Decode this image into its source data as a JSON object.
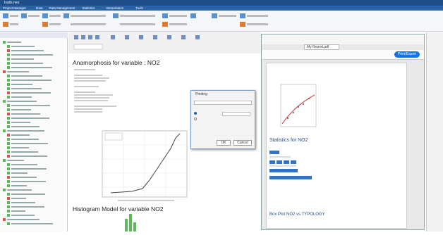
{
  "window": {
    "title": "Isatis.neo"
  },
  "menu_tabs": [
    "Project Manager",
    "Data",
    "Data Management",
    "Statistics",
    "Interpolation",
    "Tools"
  ],
  "report": {
    "title": "Anamorphosis for variable : NO2",
    "histogram_title": "Histogram Model for variable  NO2"
  },
  "dialog": {
    "title": "Printing",
    "ok": "OK",
    "cancel": "Cancel"
  },
  "pdf": {
    "tab": "My Report.pdf",
    "button": "Print/Export",
    "statistics_title": "Statistics for NO2",
    "boxplot_title": "Box Plot NO2 vs TYPOLOGY"
  }
}
